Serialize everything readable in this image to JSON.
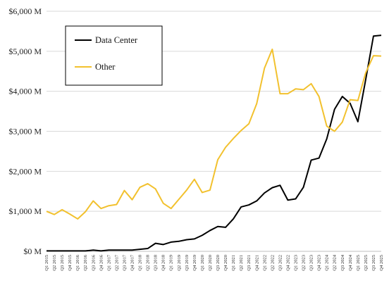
{
  "chart_data": {
    "type": "line",
    "title": "",
    "xlabel": "",
    "ylabel": "",
    "ylim": [
      0,
      6000
    ],
    "yticks": [
      "$0 M",
      "$1,000 M",
      "$2,000 M",
      "$3,000 M",
      "$4,000 M",
      "$5,000 M",
      "$6,000 M"
    ],
    "ytick_values": [
      0,
      1000,
      2000,
      3000,
      4000,
      5000,
      6000
    ],
    "grid": "horizontal",
    "legend_position": "top-left",
    "categories": [
      "Q1 2015",
      "Q2 2015",
      "Q3 2015",
      "Q4 2015",
      "Q1 2016",
      "Q2 2016",
      "Q3 2016",
      "Q4 2016",
      "Q1 2017",
      "Q2 2017",
      "Q3 2017",
      "Q4 2017",
      "Q1 2018",
      "Q2 2018",
      "Q3 2018",
      "Q4 2018",
      "Q1 2019",
      "Q2 2019",
      "Q3 2019",
      "Q4 2019",
      "Q1 2020",
      "Q2 2020",
      "Q3 2020",
      "Q4 2020",
      "Q1 2021",
      "Q2 2021",
      "Q3 2021",
      "Q4 2021",
      "Q1 2022",
      "Q2 2022",
      "Q3 2022",
      "Q4 2022",
      "Q1 2023",
      "Q2 2023",
      "Q3 2023",
      "Q4 2023",
      "Q1 2024",
      "Q2 2024",
      "Q3 2024",
      "Q4 2024",
      "Q1 2025",
      "Q2 2025",
      "Q3 2025",
      "Q4 2025"
    ],
    "series": [
      {
        "name": "Data Center",
        "color": "#000000",
        "values": [
          10,
          10,
          10,
          10,
          10,
          10,
          30,
          10,
          30,
          30,
          30,
          30,
          50,
          70,
          200,
          170,
          230,
          250,
          290,
          310,
          400,
          520,
          620,
          600,
          810,
          1110,
          1160,
          1260,
          1460,
          1590,
          1650,
          1280,
          1310,
          1600,
          2280,
          2330,
          2810,
          3550,
          3870,
          3700,
          3240,
          4290,
          5380,
          5400
        ]
      },
      {
        "name": "Other",
        "color": "#f2c12e",
        "values": [
          1000,
          920,
          1040,
          930,
          810,
          990,
          1260,
          1070,
          1140,
          1170,
          1520,
          1290,
          1600,
          1690,
          1560,
          1200,
          1070,
          1300,
          1530,
          1800,
          1470,
          1530,
          2290,
          2600,
          2820,
          3020,
          3190,
          3690,
          4580,
          5050,
          3940,
          3940,
          4060,
          4040,
          4190,
          3870,
          3130,
          3000,
          3230,
          3790,
          3770,
          4460,
          4890,
          4880
        ]
      }
    ]
  }
}
